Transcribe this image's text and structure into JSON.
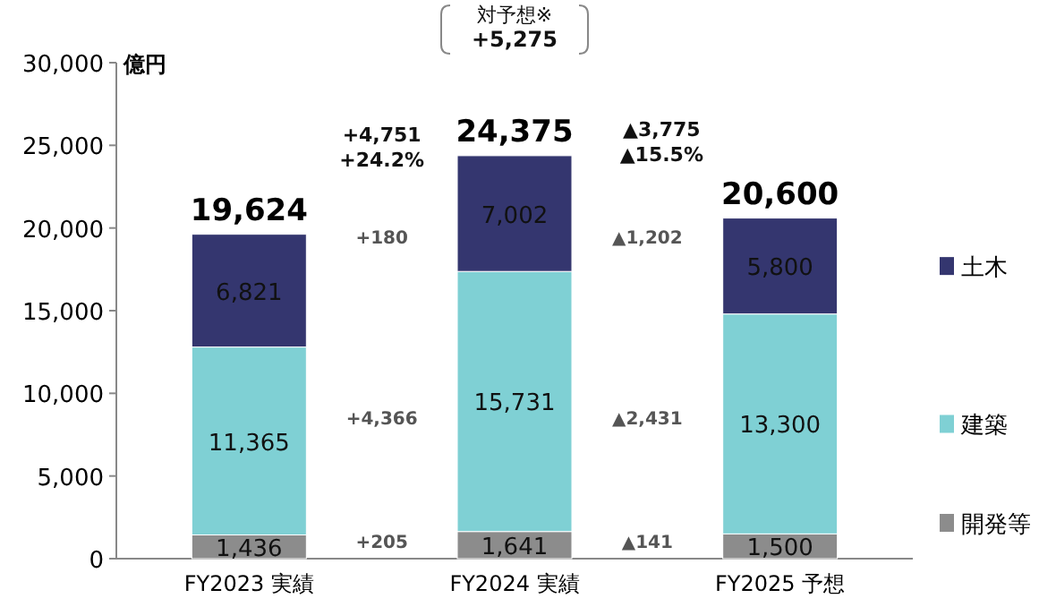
{
  "chart_data": {
    "type": "bar",
    "stacked": true,
    "ylabel": "億円",
    "categories": [
      "FY2023 実績",
      "FY2024 実績",
      "FY2025 予想"
    ],
    "series": [
      {
        "name": "開発等",
        "color": "#8c8c8c",
        "values": [
          1436,
          1641,
          1500
        ],
        "value_labels": [
          "1,436",
          "1,641",
          "1,500"
        ]
      },
      {
        "name": "建築",
        "color": "#7fd0d4",
        "values": [
          11365,
          15731,
          13300
        ],
        "value_labels": [
          "11,365",
          "15,731",
          "13,300"
        ]
      },
      {
        "name": "土木",
        "color": "#34366f",
        "values": [
          6821,
          7002,
          5800
        ],
        "value_labels": [
          "6,821",
          "7,002",
          "5,800"
        ]
      }
    ],
    "ylim": [
      0,
      30000
    ],
    "yticks": [
      0,
      {
        "value": 5000,
        "label": "5,000"
      },
      {
        "value": 10000,
        "label": "10,000"
      },
      {
        "value": 15000,
        "label": "15,000"
      },
      {
        "value": 20000,
        "label": "20,000"
      },
      {
        "value": 25000,
        "label": "25,000"
      },
      {
        "value": 30000,
        "label": "30,000"
      }
    ],
    "totals": [
      "19,624",
      "24,375",
      "20,600"
    ],
    "legend": "right",
    "annotations": [
      "対予想※",
      "+5,275",
      "+4,751",
      "+24.2%",
      "▲3,775",
      "▲15.5%",
      "+180",
      "+4,366",
      "+205",
      "▲1,202",
      "▲2,431",
      "▲141"
    ]
  }
}
